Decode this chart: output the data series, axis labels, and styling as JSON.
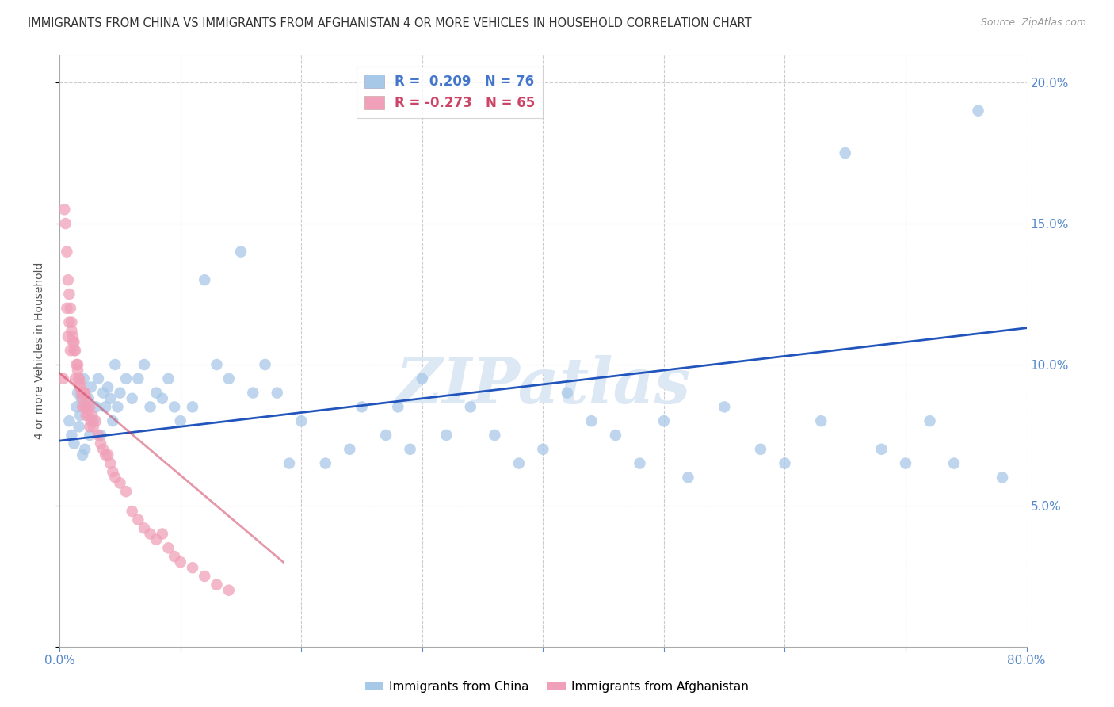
{
  "title": "IMMIGRANTS FROM CHINA VS IMMIGRANTS FROM AFGHANISTAN 4 OR MORE VEHICLES IN HOUSEHOLD CORRELATION CHART",
  "source": "Source: ZipAtlas.com",
  "ylabel": "4 or more Vehicles in Household",
  "x_min": 0.0,
  "x_max": 0.8,
  "y_min": 0.0,
  "y_max": 0.21,
  "color_china": "#a8c8e8",
  "color_afgh": "#f0a0b8",
  "trendline_china_color": "#2255bb",
  "trendline_afgh_color": "#cc3355",
  "watermark": "ZIPatlas",
  "china_R": 0.209,
  "china_N": 76,
  "afgh_R": -0.273,
  "afgh_N": 65,
  "china_scatter_x": [
    0.008,
    0.01,
    0.012,
    0.014,
    0.015,
    0.016,
    0.017,
    0.018,
    0.019,
    0.02,
    0.021,
    0.022,
    0.024,
    0.025,
    0.026,
    0.028,
    0.03,
    0.032,
    0.034,
    0.036,
    0.038,
    0.04,
    0.042,
    0.044,
    0.046,
    0.048,
    0.05,
    0.055,
    0.06,
    0.065,
    0.07,
    0.075,
    0.08,
    0.085,
    0.09,
    0.095,
    0.1,
    0.11,
    0.12,
    0.13,
    0.14,
    0.15,
    0.16,
    0.17,
    0.18,
    0.2,
    0.22,
    0.24,
    0.25,
    0.27,
    0.28,
    0.3,
    0.32,
    0.34,
    0.36,
    0.38,
    0.4,
    0.42,
    0.44,
    0.46,
    0.48,
    0.5,
    0.52,
    0.55,
    0.58,
    0.6,
    0.63,
    0.65,
    0.68,
    0.7,
    0.72,
    0.74,
    0.76,
    0.78,
    0.19,
    0.29
  ],
  "china_scatter_y": [
    0.08,
    0.075,
    0.072,
    0.085,
    0.09,
    0.078,
    0.082,
    0.088,
    0.068,
    0.095,
    0.07,
    0.085,
    0.088,
    0.075,
    0.092,
    0.08,
    0.085,
    0.095,
    0.075,
    0.09,
    0.085,
    0.092,
    0.088,
    0.08,
    0.1,
    0.085,
    0.09,
    0.095,
    0.088,
    0.095,
    0.1,
    0.085,
    0.09,
    0.088,
    0.095,
    0.085,
    0.08,
    0.085,
    0.13,
    0.1,
    0.095,
    0.14,
    0.09,
    0.1,
    0.09,
    0.08,
    0.065,
    0.07,
    0.085,
    0.075,
    0.085,
    0.095,
    0.075,
    0.085,
    0.075,
    0.065,
    0.07,
    0.09,
    0.08,
    0.075,
    0.065,
    0.08,
    0.06,
    0.085,
    0.07,
    0.065,
    0.08,
    0.175,
    0.07,
    0.065,
    0.08,
    0.065,
    0.19,
    0.06,
    0.065,
    0.07
  ],
  "afgh_scatter_x": [
    0.003,
    0.004,
    0.005,
    0.006,
    0.007,
    0.008,
    0.009,
    0.01,
    0.011,
    0.012,
    0.013,
    0.014,
    0.015,
    0.016,
    0.017,
    0.018,
    0.019,
    0.02,
    0.021,
    0.022,
    0.023,
    0.024,
    0.025,
    0.026,
    0.027,
    0.028,
    0.03,
    0.032,
    0.034,
    0.036,
    0.038,
    0.04,
    0.042,
    0.044,
    0.046,
    0.05,
    0.055,
    0.06,
    0.065,
    0.07,
    0.075,
    0.08,
    0.085,
    0.09,
    0.095,
    0.1,
    0.11,
    0.12,
    0.13,
    0.14,
    0.007,
    0.009,
    0.011,
    0.013,
    0.015,
    0.017,
    0.019,
    0.021,
    0.006,
    0.008,
    0.01,
    0.012,
    0.016,
    0.022,
    0.025
  ],
  "afgh_scatter_y": [
    0.095,
    0.155,
    0.15,
    0.14,
    0.13,
    0.125,
    0.12,
    0.115,
    0.11,
    0.108,
    0.105,
    0.1,
    0.098,
    0.095,
    0.093,
    0.09,
    0.088,
    0.09,
    0.085,
    0.088,
    0.085,
    0.082,
    0.085,
    0.08,
    0.082,
    0.078,
    0.08,
    0.075,
    0.072,
    0.07,
    0.068,
    0.068,
    0.065,
    0.062,
    0.06,
    0.058,
    0.055,
    0.048,
    0.045,
    0.042,
    0.04,
    0.038,
    0.04,
    0.035,
    0.032,
    0.03,
    0.028,
    0.025,
    0.022,
    0.02,
    0.11,
    0.105,
    0.108,
    0.095,
    0.1,
    0.092,
    0.085,
    0.09,
    0.12,
    0.115,
    0.112,
    0.105,
    0.095,
    0.082,
    0.078
  ]
}
